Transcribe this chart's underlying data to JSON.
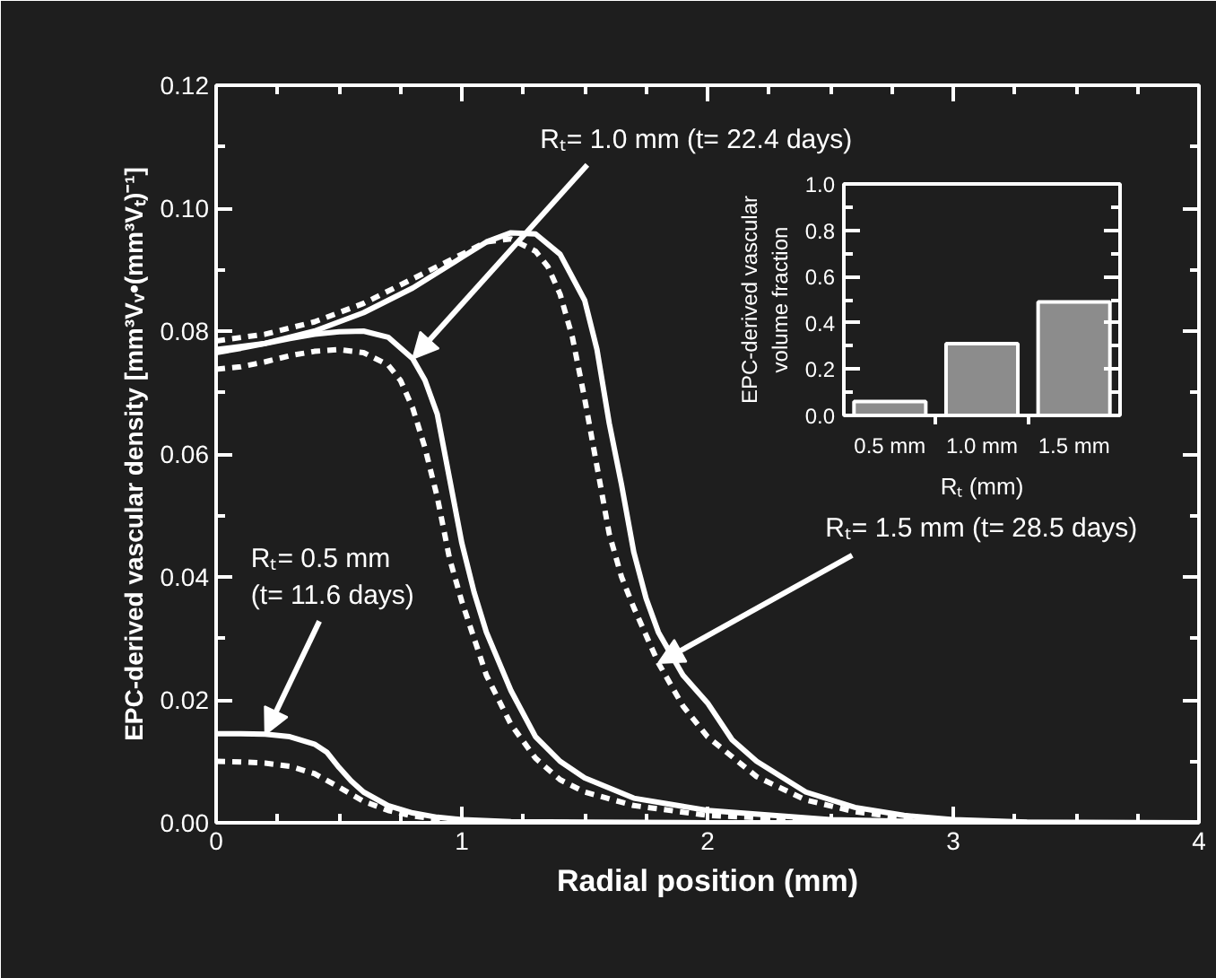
{
  "chart_data": [
    {
      "type": "line",
      "xlabel": "Radial position (mm)",
      "ylabel": "EPC-derived vascular density [mm³Vᵥ•(mm³Vₜ)⁻¹]",
      "xlim": [
        0,
        4
      ],
      "ylim": [
        0,
        0.12
      ],
      "xticks": [
        0,
        1,
        2,
        3,
        4
      ],
      "yticks": [
        {
          "value": 0,
          "label": "0.00"
        },
        0.02,
        0.04,
        0.06,
        0.08,
        {
          "value": 0.1,
          "label": "0.10"
        },
        0.12
      ],
      "series": [
        {
          "color": "#ffffff",
          "line_style": "solid",
          "x": [
            0,
            0.1,
            0.2,
            0.3,
            0.4,
            0.45,
            0.5,
            0.55,
            0.6,
            0.7,
            0.8,
            0.9,
            1.0,
            1.2,
            1.5,
            2.0,
            3.0,
            4.0
          ],
          "values": [
            0.0145,
            0.0145,
            0.0144,
            0.014,
            0.0128,
            0.0115,
            0.009,
            0.0068,
            0.005,
            0.0028,
            0.0016,
            0.0009,
            0.0005,
            0.0002,
            0.0001,
            0,
            0,
            0
          ]
        },
        {
          "color": "#ffffff",
          "line_style": "dashed",
          "x": [
            0,
            0.1,
            0.2,
            0.3,
            0.4,
            0.5,
            0.6,
            0.7,
            0.8,
            0.9,
            1.0,
            1.2,
            1.5,
            2.0
          ],
          "values": [
            0.01,
            0.0099,
            0.0097,
            0.0092,
            0.008,
            0.0058,
            0.0035,
            0.002,
            0.0011,
            0.0006,
            0.0003,
            0.0001,
            0,
            0
          ]
        },
        {
          "color": "#ffffff",
          "line_style": "solid",
          "x": [
            0,
            0.1,
            0.2,
            0.3,
            0.4,
            0.5,
            0.6,
            0.7,
            0.8,
            0.85,
            0.9,
            0.95,
            1.0,
            1.05,
            1.1,
            1.2,
            1.3,
            1.4,
            1.5,
            1.7,
            2.0,
            2.5,
            3.0,
            3.5
          ],
          "values": [
            0.0765,
            0.0772,
            0.078,
            0.0788,
            0.0795,
            0.0799,
            0.08,
            0.079,
            0.0755,
            0.072,
            0.0665,
            0.056,
            0.0455,
            0.0375,
            0.031,
            0.0215,
            0.014,
            0.01,
            0.0073,
            0.004,
            0.002,
            0.0005,
            0.0001,
            0
          ]
        },
        {
          "color": "#ffffff",
          "line_style": "dashed",
          "x": [
            0,
            0.1,
            0.2,
            0.3,
            0.4,
            0.5,
            0.6,
            0.7,
            0.75,
            0.8,
            0.85,
            0.9,
            0.95,
            1.0,
            1.05,
            1.1,
            1.2,
            1.3,
            1.4,
            1.5,
            1.7,
            2.0,
            2.5,
            3.0
          ],
          "values": [
            0.0738,
            0.0742,
            0.075,
            0.076,
            0.0767,
            0.077,
            0.0765,
            0.0745,
            0.072,
            0.0675,
            0.061,
            0.053,
            0.043,
            0.036,
            0.03,
            0.024,
            0.016,
            0.0105,
            0.007,
            0.005,
            0.0028,
            0.0012,
            0.0003,
            0
          ]
        },
        {
          "color": "#ffffff",
          "line_style": "solid",
          "x": [
            0,
            0.2,
            0.4,
            0.6,
            0.8,
            1.0,
            1.1,
            1.2,
            1.3,
            1.4,
            1.5,
            1.55,
            1.6,
            1.65,
            1.7,
            1.75,
            1.8,
            1.9,
            2.0,
            2.1,
            2.2,
            2.4,
            2.6,
            2.8,
            3.0,
            3.3,
            4.0
          ],
          "values": [
            0.077,
            0.078,
            0.08,
            0.083,
            0.087,
            0.092,
            0.0945,
            0.096,
            0.0958,
            0.0925,
            0.085,
            0.077,
            0.065,
            0.055,
            0.044,
            0.0365,
            0.031,
            0.024,
            0.0195,
            0.0135,
            0.01,
            0.005,
            0.0025,
            0.0012,
            0.0005,
            0.0001,
            0
          ]
        },
        {
          "color": "#ffffff",
          "line_style": "dashed",
          "x": [
            0,
            0.2,
            0.4,
            0.6,
            0.8,
            1.0,
            1.1,
            1.2,
            1.3,
            1.35,
            1.4,
            1.45,
            1.5,
            1.55,
            1.6,
            1.65,
            1.7,
            1.8,
            1.9,
            2.0,
            2.2,
            2.4,
            2.6,
            2.8,
            3.0,
            3.3
          ],
          "values": [
            0.0784,
            0.0795,
            0.0815,
            0.0845,
            0.0885,
            0.0925,
            0.0945,
            0.095,
            0.093,
            0.0905,
            0.086,
            0.079,
            0.069,
            0.058,
            0.047,
            0.04,
            0.035,
            0.026,
            0.019,
            0.014,
            0.0075,
            0.0037,
            0.0018,
            0.0008,
            0.0003,
            0
          ]
        }
      ],
      "annotations": [
        {
          "text": "Rₜ= 1.0 mm (t= 22.4 days)",
          "x": 0.8,
          "y": 0.0755
        },
        {
          "text": "Rₜ= 1.5 mm (t= 28.5 days)",
          "x": 1.8,
          "y": 0.026
        },
        {
          "text": "Rₜ= 0.5 mm\n(t= 11.6 days)",
          "x": 0.2,
          "y": 0.0144
        }
      ]
    },
    {
      "type": "bar",
      "xlabel": "Rₜ (mm)",
      "ylabel": "EPC-derived vascular volume fraction",
      "categories": [
        "0.5 mm",
        "1.0 mm",
        "1.5 mm"
      ],
      "values": [
        0.06,
        0.31,
        0.49
      ],
      "color": "#8c8c8c",
      "ylim": [
        0,
        1
      ],
      "yticks": [
        {
          "value": 0,
          "label": "0.0"
        },
        0.2,
        0.4,
        0.6,
        0.8,
        {
          "value": 1,
          "label": "1.0"
        }
      ]
    }
  ]
}
